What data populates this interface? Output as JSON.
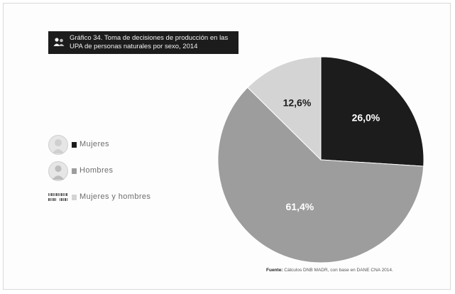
{
  "title": "Gráfico 34. Toma de decisiones de producción en las UPA de personas naturales por sexo, 2014",
  "legend": {
    "items": [
      {
        "label": "Mujeres",
        "color": "#1c1c1c",
        "icon": "woman-avatar-icon"
      },
      {
        "label": "Hombres",
        "color": "#9d9d9d",
        "icon": "man-avatar-icon"
      },
      {
        "label": "Mujeres y hombres",
        "color": "#d4d4d4",
        "icon": "barcode-icon"
      }
    ]
  },
  "source": {
    "label": "Fuente:",
    "text": "Cálculos DNB MADR, con base en DANE CNA 2014."
  },
  "chart_data": {
    "type": "pie",
    "title": "Gráfico 34. Toma de decisiones de producción en las UPA de personas naturales por sexo, 2014",
    "slices": [
      {
        "name": "Mujeres",
        "value": 26.0,
        "label": "26,0%",
        "color": "#1c1c1c",
        "label_color": "#ffffff"
      },
      {
        "name": "Hombres",
        "value": 61.4,
        "label": "61,4%",
        "color": "#9d9d9d",
        "label_color": "#ffffff"
      },
      {
        "name": "Mujeres y hombres",
        "value": 12.6,
        "label": "12,6%",
        "color": "#d4d4d4",
        "label_color": "#1c1c1c"
      }
    ],
    "start_angle": "12 o'clock",
    "direction": "clockwise",
    "legend_position": "left"
  }
}
